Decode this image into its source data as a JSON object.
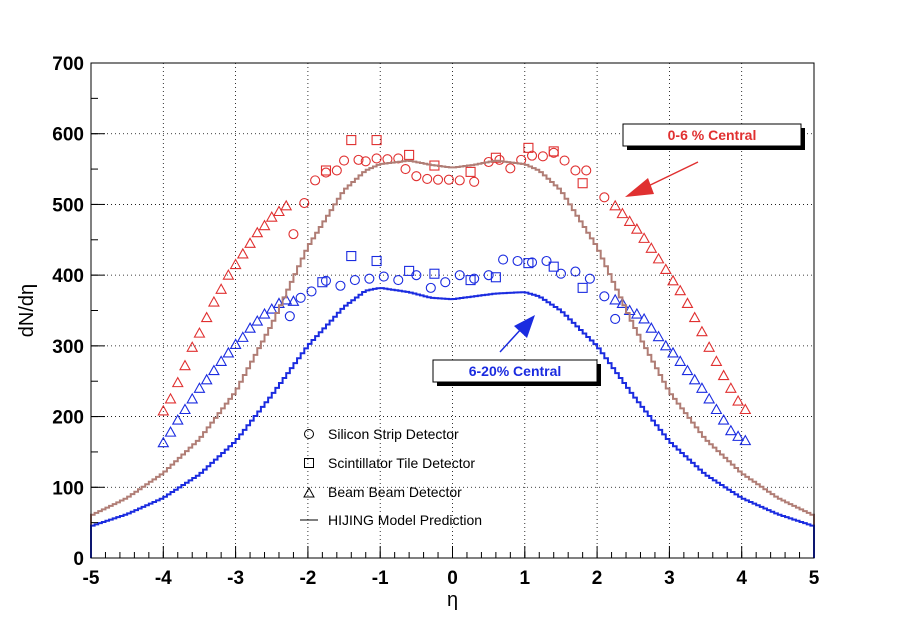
{
  "colors": {
    "central_0_6": "#e03030",
    "central_6_20": "#1a2be0",
    "hijing_0_6": "#b07d75",
    "hijing_6_20": "#1a2be0",
    "frame": "#000000",
    "grid": "#000000"
  },
  "chart_data": {
    "type": "scatter",
    "xlabel": "η",
    "ylabel": "dN/dη",
    "xlim": [
      -5,
      5
    ],
    "ylim": [
      0,
      700
    ],
    "xticks": [
      -5,
      -4,
      -3,
      -2,
      -1,
      0,
      1,
      2,
      3,
      4,
      5
    ],
    "yticks": [
      0,
      100,
      200,
      300,
      400,
      500,
      600,
      700
    ],
    "grid": true,
    "legend_placement": "bottom-center",
    "legend": [
      {
        "marker": "circle",
        "label": "Silicon Strip Detector"
      },
      {
        "marker": "square",
        "label": "Scintillator Tile Detector"
      },
      {
        "marker": "triangle",
        "label": "Beam Beam Detector"
      },
      {
        "marker": "line",
        "label": "HIJING Model Prediction"
      }
    ],
    "annotations": [
      {
        "text": "0-6 % Central",
        "points_to": [
          2.3,
          505
        ]
      },
      {
        "text": "6-20% Central",
        "points_to": [
          1.1,
          340
        ]
      }
    ],
    "series": [
      {
        "detector": "Silicon Strip Detector",
        "centrality": "0-6 % Central",
        "marker": "circle",
        "x": [
          -2.2,
          -2.05,
          -1.9,
          -1.75,
          -1.6,
          -1.5,
          -1.3,
          -1.2,
          -1.05,
          -0.9,
          -0.75,
          -0.65,
          -0.5,
          -0.35,
          -0.2,
          -0.05,
          0.1,
          0.3,
          0.5,
          0.65,
          0.8,
          0.95,
          1.1,
          1.25,
          1.4,
          1.55,
          1.7,
          1.85,
          2.1
        ],
        "y": [
          458,
          502,
          534,
          545,
          548,
          562,
          563,
          561,
          565,
          564,
          565,
          550,
          540,
          536,
          535,
          535,
          534,
          532,
          560,
          563,
          551,
          563,
          569,
          568,
          573,
          562,
          548,
          548,
          510
        ]
      },
      {
        "detector": "Scintillator Tile Detector",
        "centrality": "0-6 % Central",
        "marker": "square",
        "x": [
          -1.75,
          -1.4,
          -1.05,
          -0.6,
          -0.25,
          0.25,
          0.6,
          1.05,
          1.4,
          1.8
        ],
        "y": [
          548,
          591,
          591,
          570,
          555,
          546,
          566,
          580,
          575,
          530
        ]
      },
      {
        "detector": "Beam Beam Detector",
        "centrality": "0-6 % Central",
        "marker": "triangle",
        "x": [
          -4.0,
          -3.9,
          -3.8,
          -3.7,
          -3.6,
          -3.5,
          -3.4,
          -3.3,
          -3.2,
          -3.1,
          -3.0,
          -2.9,
          -2.8,
          -2.7,
          -2.6,
          -2.5,
          -2.4,
          -2.3,
          2.25,
          2.35,
          2.45,
          2.55,
          2.65,
          2.75,
          2.85,
          2.95,
          3.05,
          3.15,
          3.25,
          3.35,
          3.45,
          3.55,
          3.65,
          3.75,
          3.85,
          3.95,
          4.05
        ],
        "y": [
          208,
          225,
          248,
          272,
          298,
          318,
          340,
          362,
          380,
          400,
          415,
          430,
          445,
          460,
          470,
          482,
          490,
          498,
          498,
          487,
          476,
          465,
          452,
          438,
          423,
          408,
          392,
          378,
          360,
          340,
          320,
          298,
          278,
          258,
          240,
          222,
          210
        ]
      },
      {
        "detector": "Silicon Strip Detector",
        "centrality": "6-20% Central",
        "marker": "circle",
        "x": [
          -2.25,
          -2.1,
          -1.95,
          -1.75,
          -1.55,
          -1.35,
          -1.15,
          -0.95,
          -0.75,
          -0.5,
          -0.3,
          -0.1,
          0.1,
          0.3,
          0.5,
          0.7,
          0.9,
          1.1,
          1.3,
          1.5,
          1.7,
          1.9,
          2.1,
          2.25
        ],
        "y": [
          342,
          368,
          377,
          392,
          385,
          393,
          395,
          398,
          393,
          400,
          382,
          390,
          400,
          395,
          400,
          422,
          420,
          418,
          420,
          402,
          405,
          395,
          370,
          338
        ]
      },
      {
        "detector": "Scintillator Tile Detector",
        "centrality": "6-20% Central",
        "marker": "square",
        "x": [
          -1.8,
          -1.4,
          -1.05,
          -0.6,
          -0.25,
          0.25,
          0.6,
          1.05,
          1.4,
          1.8
        ],
        "y": [
          390,
          427,
          420,
          406,
          402,
          393,
          397,
          417,
          412,
          382
        ]
      },
      {
        "detector": "Beam Beam Detector",
        "centrality": "6-20% Central",
        "marker": "triangle",
        "x": [
          -4.0,
          -3.9,
          -3.8,
          -3.7,
          -3.6,
          -3.5,
          -3.4,
          -3.3,
          -3.2,
          -3.1,
          -3.0,
          -2.9,
          -2.8,
          -2.7,
          -2.6,
          -2.5,
          -2.4,
          -2.3,
          -2.2,
          2.25,
          2.35,
          2.45,
          2.55,
          2.65,
          2.75,
          2.85,
          2.95,
          3.05,
          3.15,
          3.25,
          3.35,
          3.45,
          3.55,
          3.65,
          3.75,
          3.85,
          3.95,
          4.05
        ],
        "y": [
          163,
          178,
          195,
          210,
          225,
          240,
          252,
          265,
          278,
          290,
          302,
          312,
          325,
          335,
          345,
          352,
          360,
          365,
          363,
          365,
          360,
          350,
          345,
          338,
          325,
          313,
          300,
          290,
          278,
          265,
          252,
          240,
          225,
          210,
          195,
          180,
          172,
          166
        ]
      },
      {
        "detector": "HIJING Model Prediction",
        "centrality": "0-6 % Central",
        "marker": "step",
        "x": [
          -5.0,
          -4.5,
          -4.0,
          -3.5,
          -3.0,
          -2.5,
          -2.0,
          -1.5,
          -1.2,
          -1.0,
          -0.6,
          -0.3,
          0.0,
          0.3,
          0.6,
          1.0,
          1.2,
          1.5,
          2.0,
          2.5,
          3.0,
          3.5,
          4.0,
          4.5,
          5.0
        ],
        "y": [
          60,
          85,
          120,
          168,
          235,
          330,
          440,
          520,
          548,
          557,
          562,
          556,
          552,
          556,
          562,
          557,
          548,
          520,
          440,
          330,
          235,
          168,
          120,
          85,
          60
        ]
      },
      {
        "detector": "HIJING Model Prediction",
        "centrality": "6-20% Central",
        "marker": "step",
        "x": [
          -5.0,
          -4.5,
          -4.0,
          -3.5,
          -3.0,
          -2.5,
          -2.0,
          -1.5,
          -1.2,
          -1.0,
          -0.6,
          -0.3,
          0.0,
          0.3,
          0.6,
          1.0,
          1.2,
          1.5,
          2.0,
          2.5,
          3.0,
          3.5,
          4.0,
          4.5,
          5.0
        ],
        "y": [
          45,
          62,
          85,
          118,
          165,
          230,
          300,
          355,
          378,
          382,
          376,
          368,
          366,
          370,
          374,
          376,
          370,
          350,
          300,
          230,
          165,
          118,
          85,
          62,
          45
        ]
      }
    ]
  }
}
